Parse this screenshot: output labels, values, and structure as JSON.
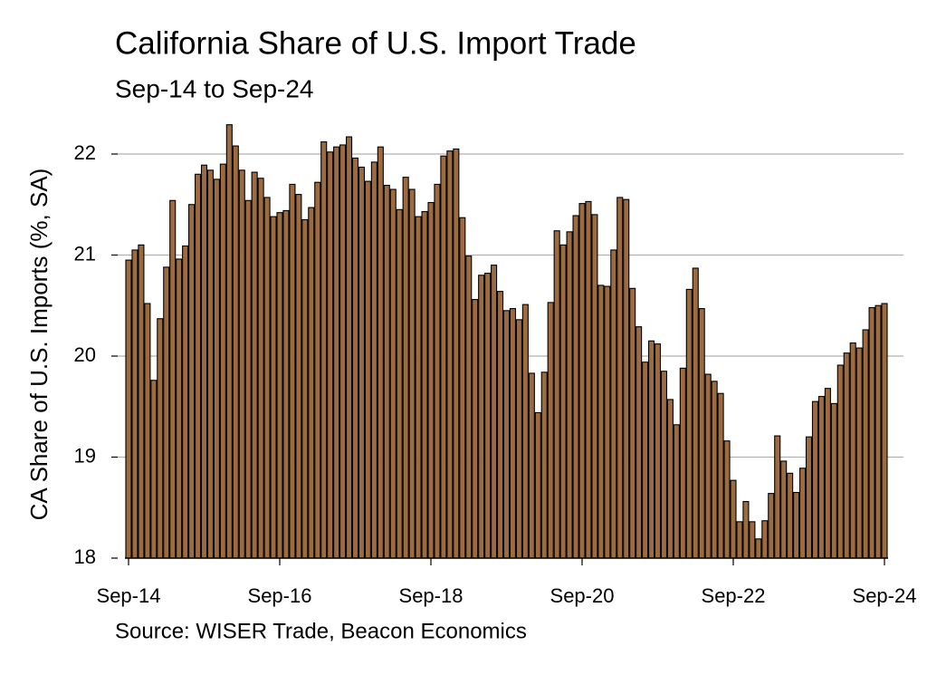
{
  "chart_data": {
    "type": "bar",
    "title": "California Share of U.S. Import Trade",
    "subtitle": "Sep-14 to Sep-24",
    "y_label": "CA Share of U.S. Imports (%, SA)",
    "source": "Source: WISER Trade, Beacon Economics",
    "color": "#9c6b3f",
    "grid": true,
    "ylim": [
      18,
      22.4
    ],
    "yticks": [
      18,
      19,
      20,
      21,
      22
    ],
    "categories": [
      "Sep-14",
      null,
      null,
      null,
      null,
      null,
      null,
      null,
      null,
      null,
      null,
      null,
      null,
      null,
      null,
      null,
      null,
      null,
      null,
      null,
      null,
      null,
      null,
      null,
      "Sep-16",
      null,
      null,
      null,
      null,
      null,
      null,
      null,
      null,
      null,
      null,
      null,
      null,
      null,
      null,
      null,
      null,
      null,
      null,
      null,
      null,
      null,
      null,
      null,
      "Sep-18",
      null,
      null,
      null,
      null,
      null,
      null,
      null,
      null,
      null,
      null,
      null,
      null,
      null,
      null,
      null,
      null,
      null,
      null,
      null,
      null,
      null,
      null,
      null,
      "Sep-20",
      null,
      null,
      null,
      null,
      null,
      null,
      null,
      null,
      null,
      null,
      null,
      null,
      null,
      null,
      null,
      null,
      null,
      null,
      null,
      null,
      null,
      null,
      null,
      "Sep-22",
      null,
      null,
      null,
      null,
      null,
      null,
      null,
      null,
      null,
      null,
      null,
      null,
      null,
      null,
      null,
      null,
      null,
      null,
      null,
      null,
      null,
      null,
      null,
      "Sep-24"
    ],
    "values": [
      20.95,
      21.05,
      21.1,
      20.52,
      19.76,
      20.37,
      20.88,
      21.54,
      20.96,
      21.09,
      21.5,
      21.8,
      21.89,
      21.84,
      21.75,
      21.9,
      22.29,
      22.08,
      21.84,
      21.54,
      21.82,
      21.76,
      21.57,
      21.38,
      21.42,
      21.44,
      21.7,
      21.6,
      21.35,
      21.47,
      21.72,
      22.12,
      22.02,
      22.07,
      22.09,
      22.17,
      21.96,
      21.87,
      21.73,
      21.92,
      22.07,
      21.69,
      21.65,
      21.45,
      21.77,
      21.65,
      21.38,
      21.43,
      21.52,
      21.7,
      21.98,
      22.03,
      22.05,
      21.37,
      20.99,
      20.56,
      20.8,
      20.82,
      20.9,
      20.64,
      20.45,
      20.47,
      20.36,
      20.51,
      19.83,
      19.44,
      19.84,
      20.53,
      21.24,
      21.1,
      21.23,
      21.39,
      21.51,
      21.53,
      21.4,
      20.7,
      20.69,
      21.05,
      21.57,
      21.55,
      20.67,
      20.29,
      19.94,
      20.15,
      20.12,
      19.85,
      19.57,
      19.32,
      19.88,
      20.66,
      20.87,
      20.47,
      19.82,
      19.75,
      19.63,
      19.16,
      18.77,
      18.36,
      18.56,
      18.36,
      18.19,
      18.37,
      18.64,
      19.21,
      18.96,
      18.84,
      18.65,
      18.89,
      19.2,
      19.55,
      19.6,
      19.68,
      19.53,
      19.91,
      20.03,
      20.13,
      20.08,
      20.26,
      20.48,
      20.5,
      20.52
    ]
  }
}
